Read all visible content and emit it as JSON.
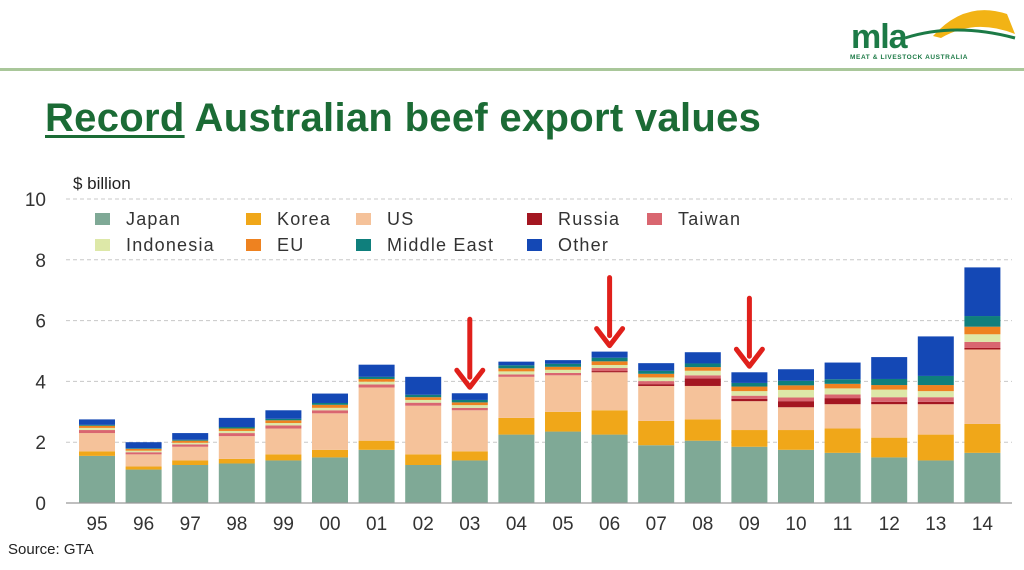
{
  "header": {
    "title_emphasis": "Record",
    "title_rest": " Australian beef export values"
  },
  "logo": {
    "wordmark": "mla",
    "tagline": "MEAT & LIVESTOCK AUSTRALIA",
    "brand_green": "#1c7a46",
    "sun_color": "#f2b315"
  },
  "footer": {
    "source": "Source: GTA"
  },
  "colors": {
    "Japan": "#7fa996",
    "Korea": "#f0a719",
    "US": "#f5c29a",
    "Russia": "#a31621",
    "Taiwan": "#d96670",
    "Indonesia": "#dde8a8",
    "EU": "#ee8220",
    "Middle East": "#0f7f7c",
    "Other": "#1448b5",
    "arrow": "#e0201b",
    "title_green": "#1b6b35"
  },
  "chart_data": {
    "type": "bar",
    "stacked": true,
    "ylabel": "$ billion",
    "ylim": [
      0,
      10
    ],
    "yticks": [
      0,
      2,
      4,
      6,
      8,
      10
    ],
    "grid": "horizontal dashed",
    "legend_position": "top-left",
    "categories": [
      "95",
      "96",
      "97",
      "98",
      "99",
      "00",
      "01",
      "02",
      "03",
      "04",
      "05",
      "06",
      "07",
      "08",
      "09",
      "10",
      "11",
      "12",
      "13",
      "14"
    ],
    "series": [
      {
        "name": "Japan",
        "values": [
          1.55,
          1.1,
          1.25,
          1.3,
          1.4,
          1.5,
          1.75,
          1.25,
          1.4,
          2.25,
          2.35,
          2.25,
          1.9,
          2.05,
          1.85,
          1.75,
          1.65,
          1.5,
          1.4,
          1.65
        ]
      },
      {
        "name": "Korea",
        "values": [
          0.15,
          0.1,
          0.15,
          0.15,
          0.2,
          0.25,
          0.3,
          0.35,
          0.3,
          0.55,
          0.65,
          0.8,
          0.8,
          0.7,
          0.55,
          0.65,
          0.8,
          0.65,
          0.85,
          0.95
        ]
      },
      {
        "name": "US",
        "values": [
          0.6,
          0.4,
          0.45,
          0.75,
          0.85,
          1.2,
          1.75,
          1.6,
          1.35,
          1.35,
          1.2,
          1.25,
          1.15,
          1.1,
          0.95,
          0.75,
          0.8,
          1.1,
          1.0,
          2.45
        ]
      },
      {
        "name": "Russia",
        "values": [
          0,
          0,
          0,
          0,
          0,
          0,
          0,
          0,
          0,
          0,
          0,
          0.04,
          0.06,
          0.25,
          0.08,
          0.2,
          0.2,
          0.08,
          0.08,
          0.05
        ]
      },
      {
        "name": "Taiwan",
        "values": [
          0.1,
          0.07,
          0.08,
          0.1,
          0.1,
          0.1,
          0.1,
          0.1,
          0.08,
          0.08,
          0.08,
          0.1,
          0.1,
          0.1,
          0.1,
          0.12,
          0.12,
          0.15,
          0.15,
          0.2
        ]
      },
      {
        "name": "Indonesia",
        "values": [
          0.07,
          0.05,
          0.05,
          0.07,
          0.08,
          0.08,
          0.09,
          0.09,
          0.09,
          0.1,
          0.1,
          0.1,
          0.12,
          0.15,
          0.15,
          0.25,
          0.2,
          0.25,
          0.2,
          0.25
        ]
      },
      {
        "name": "EU",
        "values": [
          0.07,
          0.06,
          0.07,
          0.08,
          0.09,
          0.1,
          0.09,
          0.09,
          0.09,
          0.1,
          0.1,
          0.12,
          0.12,
          0.12,
          0.15,
          0.15,
          0.15,
          0.15,
          0.2,
          0.25
        ]
      },
      {
        "name": "Middle East",
        "values": [
          0.03,
          0.02,
          0.03,
          0.05,
          0.05,
          0.06,
          0.07,
          0.08,
          0.08,
          0.1,
          0.1,
          0.12,
          0.1,
          0.12,
          0.12,
          0.15,
          0.15,
          0.2,
          0.3,
          0.35
        ]
      },
      {
        "name": "Other",
        "values": [
          0.18,
          0.2,
          0.22,
          0.3,
          0.28,
          0.31,
          0.4,
          0.59,
          0.22,
          0.12,
          0.12,
          0.2,
          0.25,
          0.37,
          0.35,
          0.38,
          0.55,
          0.72,
          1.3,
          1.6
        ]
      }
    ],
    "annotations": [
      {
        "type": "down-arrow",
        "category": "03"
      },
      {
        "type": "down-arrow",
        "category": "06"
      },
      {
        "type": "down-arrow",
        "category": "09"
      }
    ]
  }
}
